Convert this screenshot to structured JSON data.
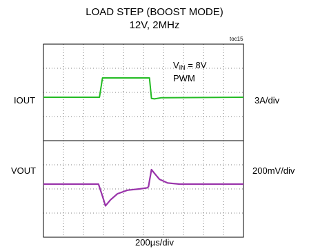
{
  "header": {
    "title": "LOAD STEP (BOOST MODE)",
    "subtitle": "12V, 2MHz",
    "fig_id": "toc15"
  },
  "annotation": {
    "vin_prefix": "V",
    "vin_sub": "IN",
    "vin_value": " = 8V",
    "mode": "PWM"
  },
  "channels": {
    "iout": {
      "name": "IOUT",
      "scale": "3A/div",
      "color": "#22bb22"
    },
    "vout": {
      "name": "VOUT",
      "scale": "200mV/div",
      "color": "#9933aa"
    }
  },
  "xaxis": {
    "scale": "200µs/div"
  },
  "chart_data": {
    "type": "line",
    "title": "LOAD STEP (BOOST MODE)",
    "subtitle": "12V, 2MHz",
    "xlabel": "200µs/div",
    "x_units": "div",
    "xlim": [
      0,
      10
    ],
    "ylim": [
      -4,
      4
    ],
    "grid": true,
    "series": [
      {
        "name": "IOUT",
        "scale": "3A/div",
        "x": [
          0,
          2.8,
          2.95,
          5.3,
          5.4,
          5.55,
          5.9,
          10
        ],
        "y": [
          1.8,
          1.8,
          2.6,
          2.6,
          1.75,
          1.73,
          1.78,
          1.8
        ]
      },
      {
        "name": "VOUT",
        "scale": "200mV/div",
        "x": [
          0,
          2.75,
          2.95,
          3.1,
          3.35,
          3.7,
          4.2,
          4.8,
          5.2,
          5.25,
          5.4,
          5.55,
          5.8,
          6.2,
          6.8,
          7.5,
          10
        ],
        "y": [
          -1.8,
          -1.8,
          -2.3,
          -2.7,
          -2.45,
          -2.2,
          -2.05,
          -2.0,
          -1.95,
          -1.9,
          -1.2,
          -1.35,
          -1.6,
          -1.75,
          -1.8,
          -1.8,
          -1.8
        ]
      }
    ]
  }
}
